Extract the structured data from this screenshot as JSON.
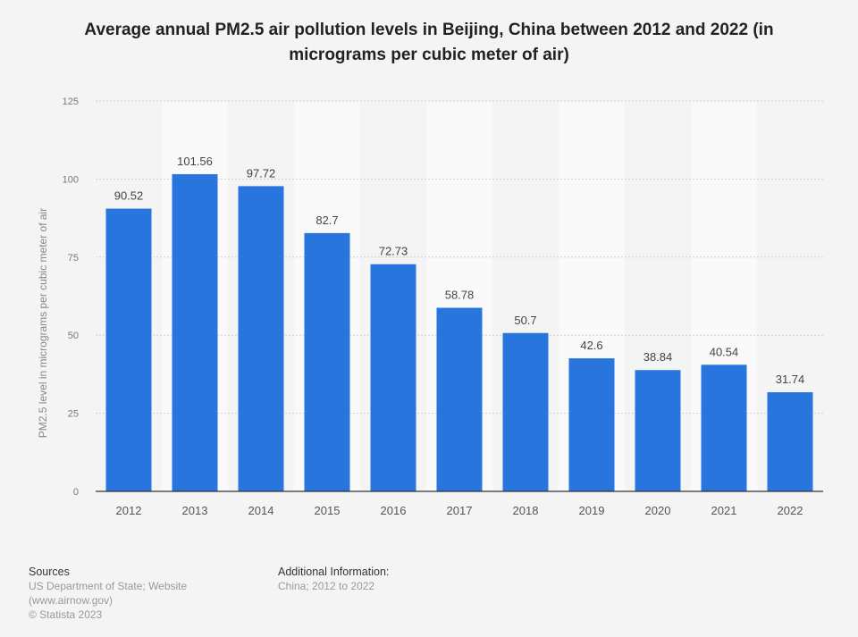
{
  "chart_data": {
    "type": "bar",
    "title": "Average annual PM2.5 air pollution levels in Beijing, China between 2012 and 2022 (in micrograms per cubic meter of air)",
    "xlabel": "",
    "ylabel": "PM2.5 level in micrograms per cubic meter of air",
    "categories": [
      "2012",
      "2013",
      "2014",
      "2015",
      "2016",
      "2017",
      "2018",
      "2019",
      "2020",
      "2021",
      "2022"
    ],
    "values": [
      90.52,
      101.56,
      97.72,
      82.7,
      72.73,
      58.78,
      50.7,
      42.6,
      38.84,
      40.54,
      31.74
    ],
    "value_labels": [
      "90.52",
      "101.56",
      "97.72",
      "82.7",
      "72.73",
      "58.78",
      "50.7",
      "42.6",
      "38.84",
      "40.54",
      "31.74"
    ],
    "ylim": [
      0,
      125
    ],
    "yticks": [
      "0",
      "25",
      "50",
      "75",
      "100",
      "125"
    ],
    "grid": true,
    "bar_color": "#2876dd"
  },
  "footer": {
    "sources_heading": "Sources",
    "sources_lines": [
      "US Department of State; Website",
      "(www.airnow.gov)",
      "© Statista 2023"
    ],
    "additional_heading": "Additional Information:",
    "additional_text": "China; 2012 to 2022"
  }
}
